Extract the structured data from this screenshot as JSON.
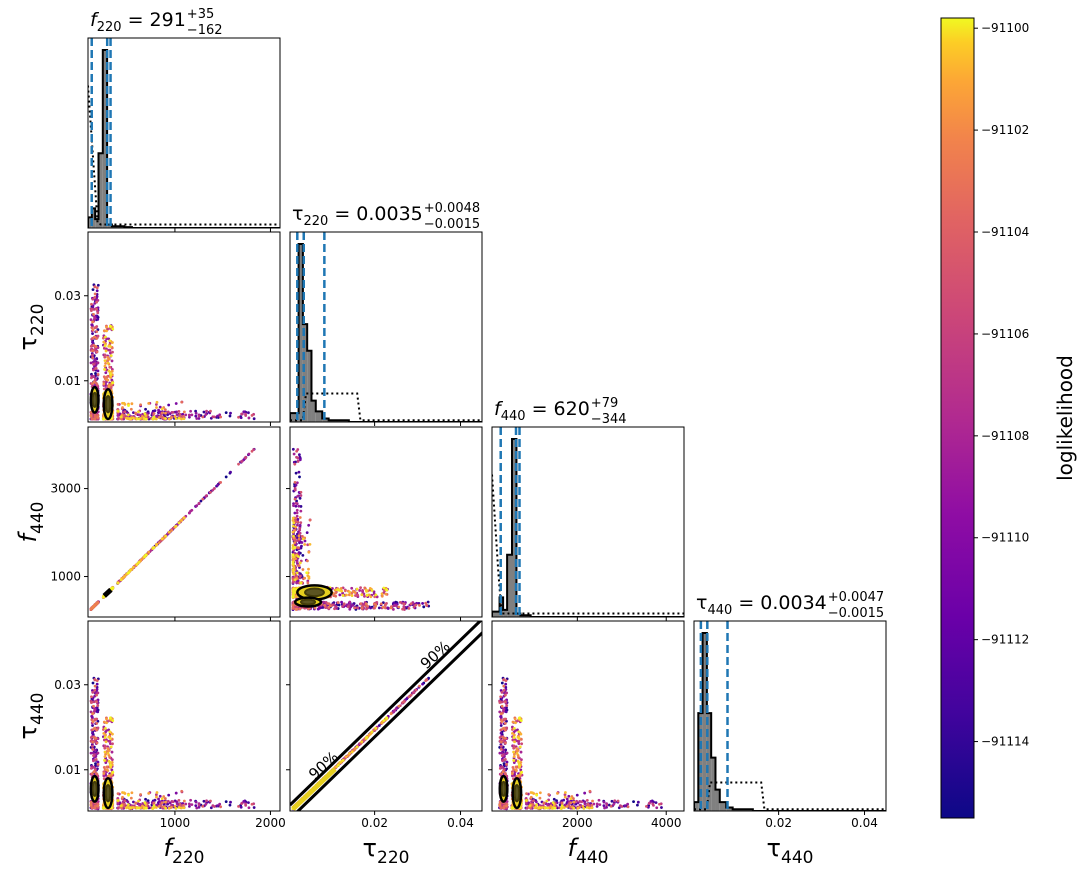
{
  "chart_data": {
    "type": "corner",
    "params": [
      {
        "key": "f220",
        "sym": "f",
        "sub": "220",
        "italic": true,
        "median": "291",
        "plus": "+35",
        "minus": "−162",
        "range": [
          90,
          2100
        ],
        "ticks": [
          1000,
          2000
        ],
        "tick_labels": [
          "1000",
          "2000"
        ]
      },
      {
        "key": "tau220",
        "sym": "τ",
        "sub": "220",
        "italic": false,
        "median": "0.0035",
        "plus": "+0.0048",
        "minus": "−0.0015",
        "range": [
          0.0003,
          0.045
        ],
        "ticks": [
          0.02,
          0.04
        ],
        "tick_labels": [
          "0.02",
          "0.04"
        ],
        "yticks": [
          0.01,
          0.03
        ],
        "ytick_labels": [
          "0.01",
          "0.03"
        ]
      },
      {
        "key": "f440",
        "sym": "f",
        "sub": "440",
        "italic": true,
        "median": "620",
        "plus": "+79",
        "minus": "−344",
        "range": [
          80,
          4400
        ],
        "ticks": [
          2000,
          4000
        ],
        "tick_labels": [
          "2000",
          "4000"
        ],
        "yticks": [
          1000,
          3000
        ],
        "ytick_labels": [
          "1000",
          "3000"
        ]
      },
      {
        "key": "tau440",
        "sym": "τ",
        "sub": "440",
        "italic": false,
        "median": "0.0034",
        "plus": "+0.0047",
        "minus": "−0.0015",
        "range": [
          0.0003,
          0.045
        ],
        "ticks": [
          0.02,
          0.04
        ],
        "tick_labels": [
          "0.02",
          "0.04"
        ],
        "yticks": [
          0.01,
          0.03
        ],
        "ytick_labels": [
          "0.01",
          "0.03"
        ]
      }
    ],
    "quantile_lines": [
      [
        129,
        291,
        326
      ],
      [
        0.002,
        0.0035,
        0.0083
      ],
      [
        276,
        620,
        699
      ],
      [
        0.0019,
        0.0034,
        0.0081
      ]
    ],
    "contour_label": "90%",
    "colorbar": {
      "label": "loglikelihood",
      "range": [
        -91115.5,
        -91099.8
      ],
      "ticks": [
        -91100,
        -91102,
        -91104,
        -91106,
        -91108,
        -91110,
        -91112,
        -91114
      ],
      "tick_labels": [
        "−91100",
        "−91102",
        "−91104",
        "−91106",
        "−91108",
        "−91110",
        "−91112",
        "−91114"
      ],
      "colormap": "plasma"
    },
    "colors": {
      "quantile": "#1f77b4",
      "hist_fill": "#808080",
      "contour": "#000000",
      "contour_fill": "#e6cf1f"
    }
  }
}
